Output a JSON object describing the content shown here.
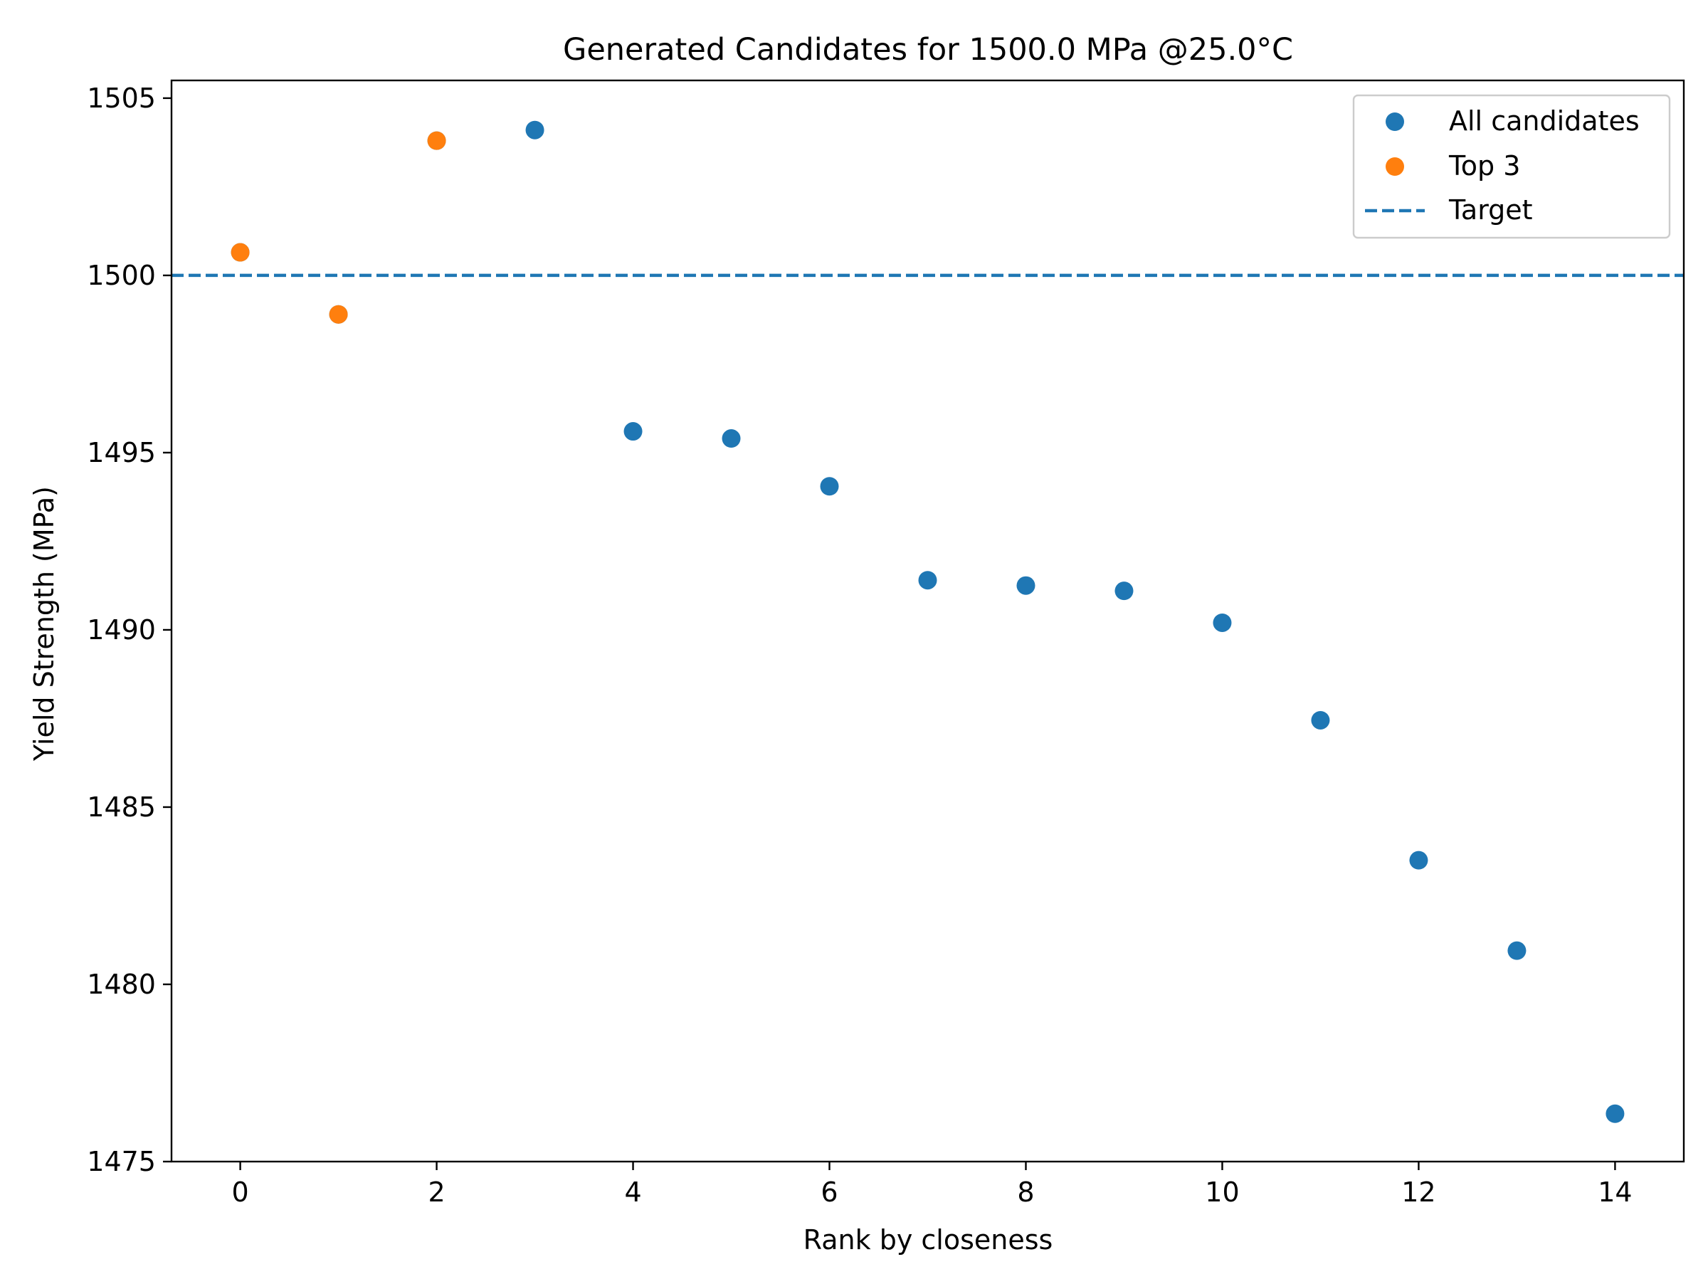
{
  "chart_data": {
    "type": "scatter",
    "title": "Generated Candidates for 1500.0 MPa @25.0°C",
    "xlabel": "Rank by closeness",
    "ylabel": "Yield Strength (MPa)",
    "xlim": [
      -0.7,
      14.7
    ],
    "ylim": [
      1475,
      1505.5
    ],
    "xticks": [
      0,
      2,
      4,
      6,
      8,
      10,
      12,
      14
    ],
    "yticks": [
      1475,
      1480,
      1485,
      1490,
      1495,
      1500,
      1505
    ],
    "grid": false,
    "legend_position": "top-right",
    "series": [
      {
        "name": "All candidates",
        "kind": "scatter",
        "color": "#1f77b4",
        "points": [
          {
            "x": 0,
            "y": 1500.65
          },
          {
            "x": 1,
            "y": 1498.9
          },
          {
            "x": 2,
            "y": 1503.8
          },
          {
            "x": 3,
            "y": 1504.1
          },
          {
            "x": 4,
            "y": 1495.6
          },
          {
            "x": 5,
            "y": 1495.4
          },
          {
            "x": 6,
            "y": 1494.05
          },
          {
            "x": 7,
            "y": 1491.4
          },
          {
            "x": 8,
            "y": 1491.25
          },
          {
            "x": 9,
            "y": 1491.1
          },
          {
            "x": 10,
            "y": 1490.2
          },
          {
            "x": 11,
            "y": 1487.45
          },
          {
            "x": 12,
            "y": 1483.5
          },
          {
            "x": 13,
            "y": 1480.95
          },
          {
            "x": 14,
            "y": 1476.35
          }
        ]
      },
      {
        "name": "Top 3",
        "kind": "scatter",
        "color": "#ff7f0e",
        "points": [
          {
            "x": 0,
            "y": 1500.65
          },
          {
            "x": 1,
            "y": 1498.9
          },
          {
            "x": 2,
            "y": 1503.8
          }
        ]
      },
      {
        "name": "Target",
        "kind": "hline",
        "color": "#1f77b4",
        "y": 1500
      }
    ]
  }
}
